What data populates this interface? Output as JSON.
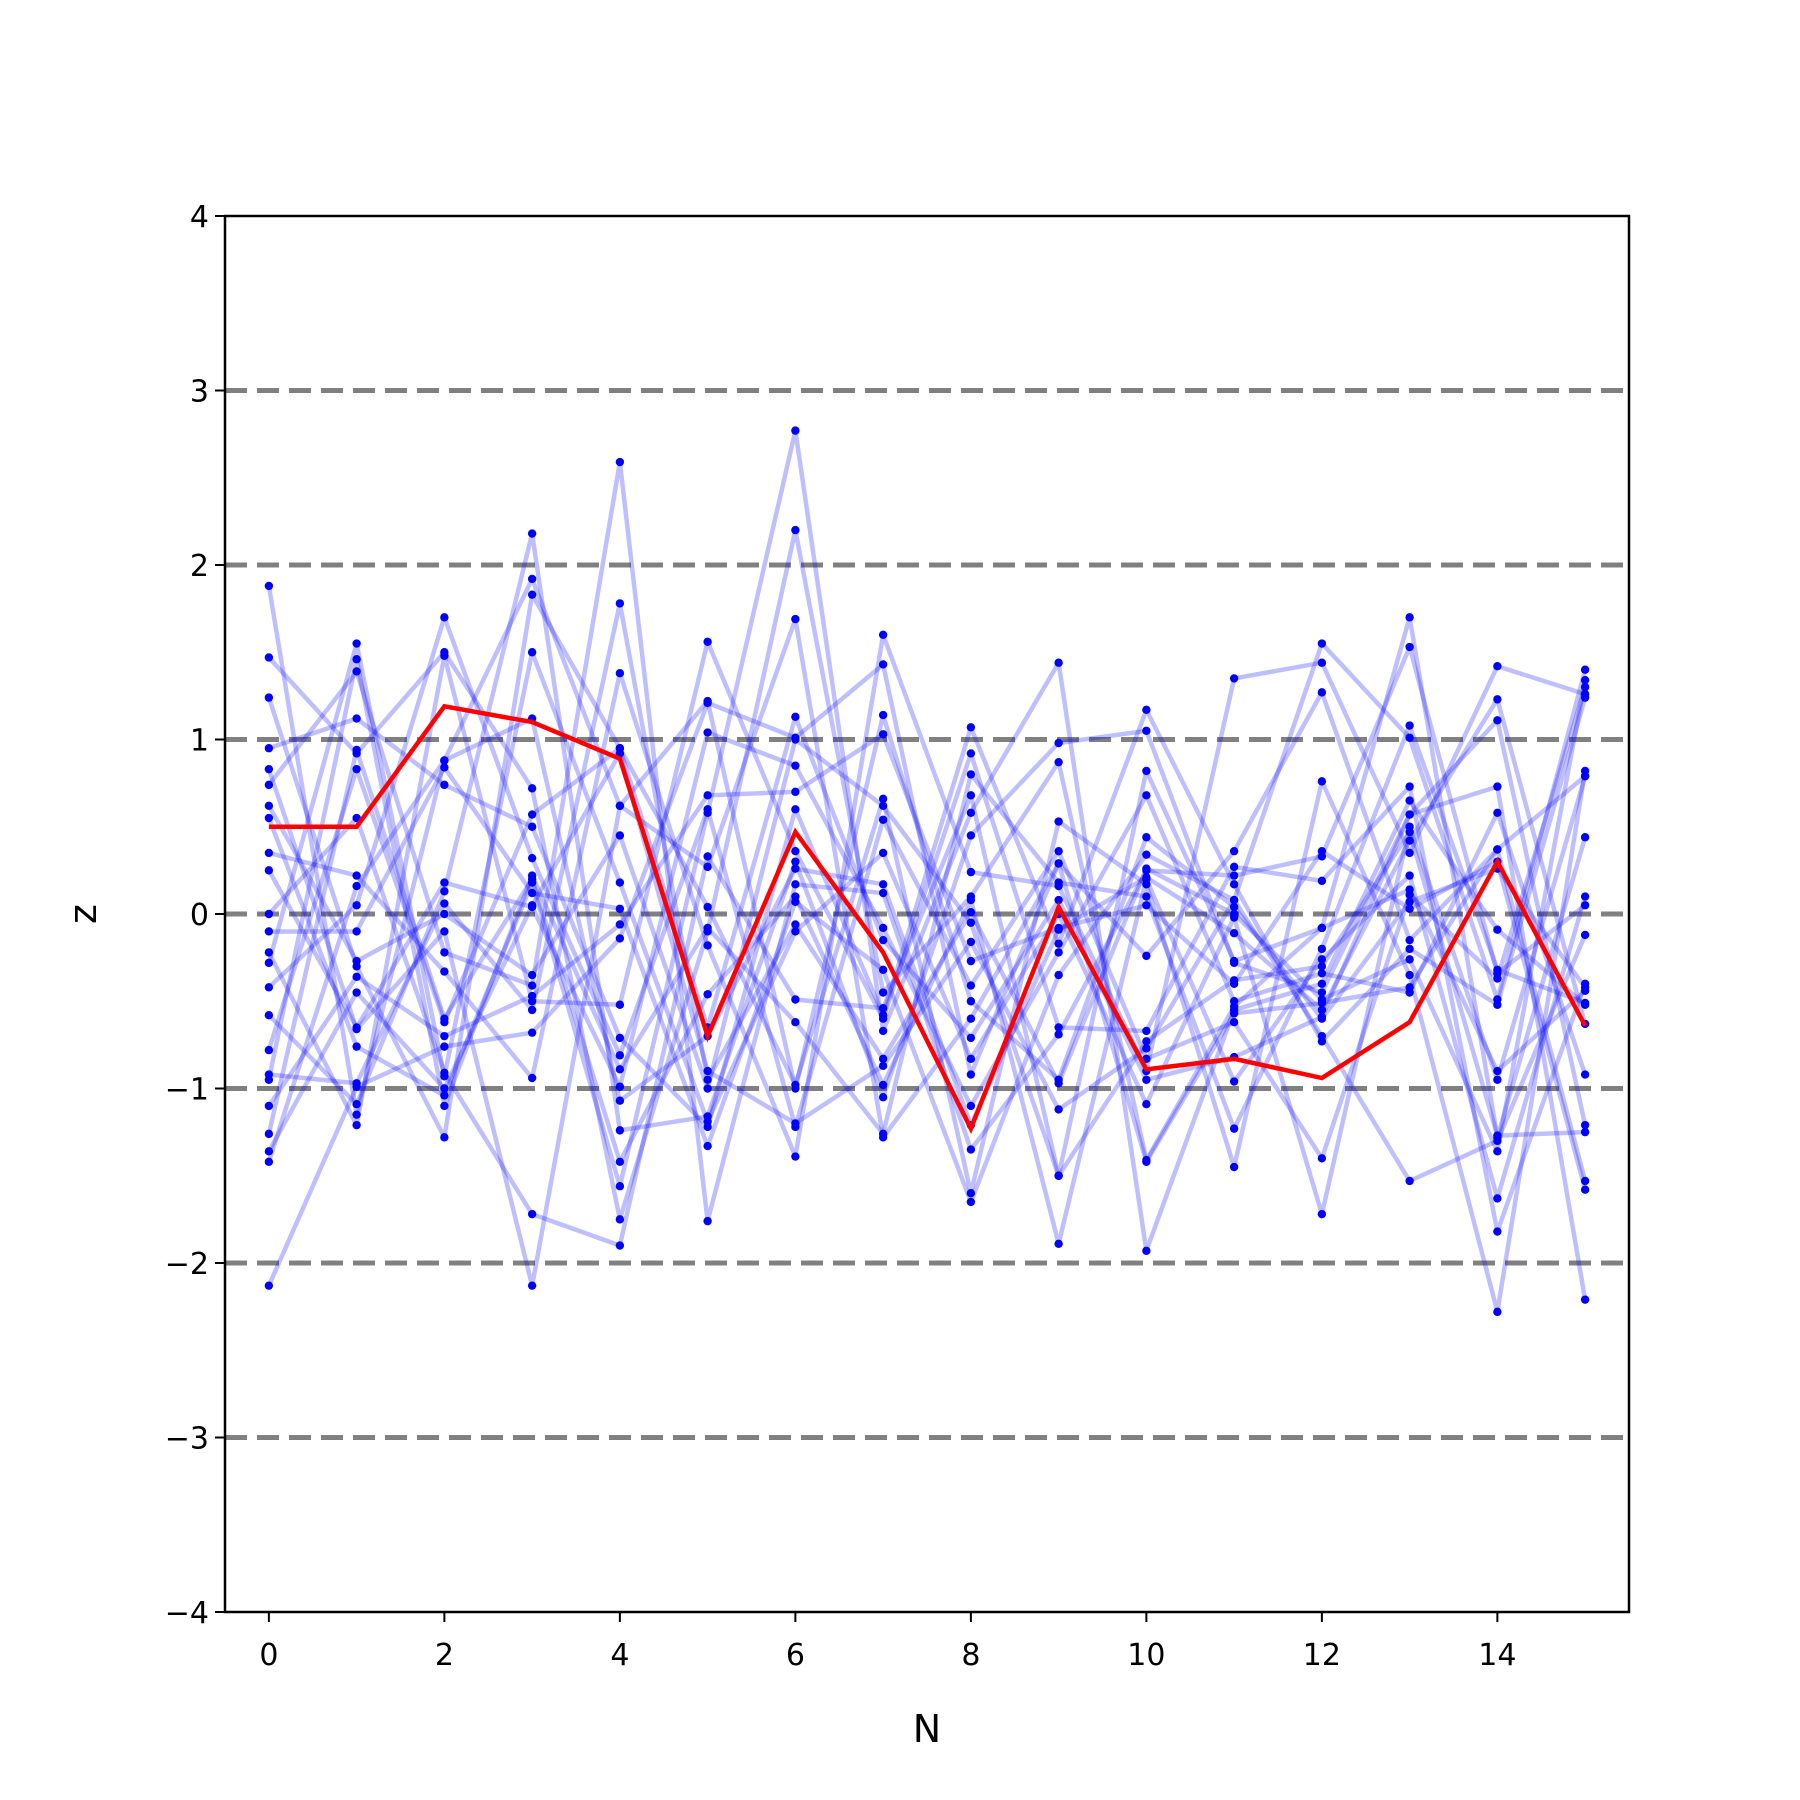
{
  "chart_data": {
    "type": "line",
    "xlabel": "N",
    "ylabel": "z",
    "xlim": [
      -0.5,
      15.5
    ],
    "ylim": [
      -4,
      4
    ],
    "xticks": [
      0,
      2,
      4,
      6,
      8,
      10,
      12,
      14
    ],
    "yticks": [
      -4,
      -3,
      -2,
      -1,
      0,
      1,
      2,
      3,
      4
    ],
    "ytick_labels": [
      "−4",
      "−3",
      "−2",
      "−1",
      "0",
      "1",
      "2",
      "3",
      "4"
    ],
    "reference_lines": [
      -3,
      -2,
      -1,
      0,
      1,
      2,
      3
    ],
    "x": [
      0,
      1,
      2,
      3,
      4,
      5,
      6,
      7,
      8,
      9,
      10,
      11,
      12,
      13,
      14,
      15
    ],
    "colors": {
      "trials": "#0000ff",
      "highlight": "#ff0000",
      "reference": "#808080"
    },
    "series": [
      {
        "values": [
          1.88,
          -1.15,
          0.88,
          1.92,
          0.62,
          1.22,
          -1.0,
          1.14,
          -0.5,
          -0.95,
          0.44,
          0.04,
          -0.6,
          0.07,
          0.26,
          -0.42
        ]
      },
      {
        "values": [
          1.47,
          0.92,
          1.5,
          0.72,
          -1.75,
          -0.1,
          2.2,
          -0.45,
          0.1,
          0.87,
          -1.41,
          -0.53,
          -0.08,
          1.7,
          -1.28,
          0.44
        ]
      },
      {
        "values": [
          1.24,
          -0.3,
          -1.28,
          1.83,
          0.95,
          0.04,
          -0.98,
          0.66,
          -1.6,
          0.53,
          0.17,
          -1.45,
          0.76,
          -0.35,
          -2.28,
          0.82
        ]
      },
      {
        "values": [
          0.95,
          1.12,
          0.74,
          0.5,
          -0.71,
          -1.22,
          0.6,
          -0.58,
          1.07,
          -0.17,
          1.17,
          0.17,
          -0.73,
          -0.2,
          -0.52,
          1.24
        ]
      },
      {
        "values": [
          0.83,
          -0.66,
          -0.1,
          -2.13,
          0.62,
          0.27,
          1.69,
          -1.28,
          -0.6,
          0.29,
          -0.24,
          0.36,
          1.27,
          -0.15,
          0.37,
          -1.53
        ]
      },
      {
        "values": [
          0.74,
          1.39,
          -0.22,
          -0.41,
          2.59,
          -1.76,
          0.17,
          0.12,
          -1.35,
          -0.69,
          0.25,
          0.22,
          0.33,
          1.53,
          -0.34,
          0.05
        ]
      },
      {
        "values": [
          0.55,
          -0.76,
          -1.04,
          0.18,
          -1.56,
          0.58,
          2.77,
          -0.67,
          0.58,
          1.44,
          -1.93,
          -0.55,
          -0.4,
          0.65,
          -0.09,
          -0.52
        ]
      },
      {
        "values": [
          0.35,
          0.22,
          -0.33,
          -0.94,
          1.38,
          -0.18,
          -1.39,
          1.6,
          0.24,
          0.16,
          -0.9,
          1.35,
          1.44,
          0.35,
          1.42,
          1.26
        ]
      },
      {
        "values": [
          0.25,
          -0.65,
          0.18,
          0.04,
          -0.99,
          1.04,
          0.85,
          -0.08,
          -1.1,
          -0.22,
          0.68,
          -0.5,
          -0.34,
          -0.45,
          0.58,
          -0.92
        ]
      },
      {
        "values": [
          0.0,
          0.55,
          -0.91,
          -1.72,
          -1.9,
          0.33,
          -0.49,
          -0.54,
          0.68,
          -1.5,
          0.82,
          -0.27,
          -0.08,
          0.14,
          -0.9,
          -0.44
        ]
      },
      {
        "values": [
          -0.1,
          -0.1,
          0.84,
          0.12,
          0.03,
          -1.33,
          0.07,
          -0.32,
          -1.65,
          -0.35,
          0.34,
          0.08,
          1.55,
          1.01,
          -0.49,
          1.4
        ]
      },
      {
        "values": [
          -0.22,
          -1.21,
          1.48,
          -0.5,
          -0.52,
          1.56,
          0.36,
          -0.6,
          0.92,
          -0.65,
          -0.67,
          0.27,
          0.19,
          0.73,
          -1.82,
          -0.4
        ]
      },
      {
        "values": [
          -0.28,
          1.55,
          -0.93,
          1.5,
          0.18,
          -1.19,
          -0.1,
          0.35,
          -0.83,
          0.0,
          -1.09,
          -0.02,
          -1.72,
          0.5,
          -0.95,
          0.79
        ]
      },
      {
        "values": [
          -0.42,
          0.05,
          1.7,
          0.32,
          -0.81,
          0.6,
          -1.22,
          0.54,
          -0.41,
          0.36,
          -0.83,
          -0.62,
          -1.4,
          0.11,
          -0.37,
          1.3
        ]
      },
      {
        "values": [
          -0.58,
          -1.09,
          0.13,
          2.18,
          -1.24,
          -1.16,
          0.3,
          -1.05,
          0.45,
          0.98,
          1.05,
          -0.28,
          -0.45,
          0.57,
          1.11,
          -1.21
        ]
      },
      {
        "values": [
          -0.78,
          0.83,
          -0.62,
          0.57,
          0.95,
          -0.65,
          1.13,
          -0.15,
          -0.71,
          0.08,
          -0.95,
          -0.82,
          -0.59,
          0.57,
          0.73,
          -2.21
        ]
      },
      {
        "values": [
          -0.92,
          -0.97,
          0.06,
          -0.55,
          1.78,
          -0.95,
          -0.06,
          -0.83,
          0.01,
          -0.97,
          0.26,
          0.0,
          -0.49,
          -0.26,
          -1.36,
          1.34
        ]
      },
      {
        "values": [
          -1.1,
          -0.36,
          -0.7,
          -0.47,
          -0.06,
          0.68,
          0.7,
          1.03,
          -0.27,
          -0.08,
          0.05,
          -0.4,
          0.36,
          0.03,
          0.3,
          -1.58
        ]
      },
      {
        "values": [
          -1.26,
          0.94,
          -0.6,
          0.2,
          -1.42,
          -0.46,
          0.1,
          -0.98,
          0.08,
          -1.89,
          0.2,
          -0.96,
          -0.26,
          0.22,
          -1.63,
          0.1
        ]
      },
      {
        "values": [
          -1.36,
          -0.45,
          -1.0,
          0.05,
          0.92,
          -0.9,
          -1.2,
          -0.87,
          -0.16,
          -1.12,
          -0.77,
          0.08,
          -0.7,
          -1.53,
          -1.3,
          -0.12
        ]
      },
      {
        "values": [
          -1.42,
          0.16,
          0.88,
          1.12,
          -1.07,
          -0.7,
          0.26,
          0.17,
          -1.21,
          -0.09,
          0.21,
          -0.11,
          -0.55,
          0.42,
          1.23,
          -0.63
        ]
      },
      {
        "values": [
          -2.13,
          -0.99,
          -0.76,
          -0.68,
          -0.14,
          1.21,
          1.01,
          1.43,
          -0.92,
          0.29,
          -1.42,
          -0.57,
          -0.51,
          -0.42,
          0.37,
          0.79
        ]
      },
      {
        "values": [
          -0.95,
          1.46,
          -1.1,
          0.22,
          -0.89,
          -0.08,
          -0.62,
          -1.26,
          0.8,
          0.18,
          0.1,
          -1.23,
          -0.2,
          1.08,
          -0.32,
          -0.51
        ]
      },
      {
        "values": [
          0.62,
          -0.27,
          0.0,
          -0.35,
          0.45,
          -1.0,
          1.0,
          0.62,
          -0.05,
          -1.5,
          -0.73,
          -0.38,
          -0.3,
          0.47,
          -1.27,
          -1.25
        ]
      }
    ],
    "highlight": {
      "values": [
        0.5,
        0.5,
        1.19,
        1.1,
        0.89,
        -0.7,
        0.47,
        -0.22,
        -1.23,
        0.04,
        -0.89,
        -0.83,
        -0.94,
        -0.62,
        0.3,
        -0.64
      ]
    }
  }
}
